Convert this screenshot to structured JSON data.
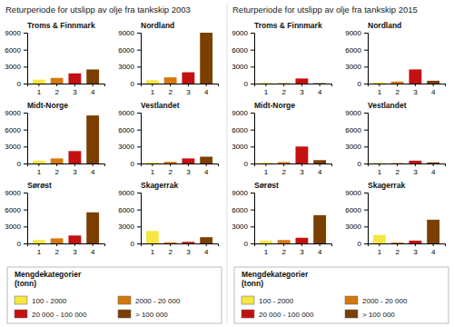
{
  "chart_data": [
    {
      "type": "bar",
      "title": "Returperiode for utslipp av olje fra tankskip 2003",
      "categories": [
        "1",
        "2",
        "3",
        "4"
      ],
      "colors": [
        "#F5E642",
        "#D4780A",
        "#C41010",
        "#7B3F00"
      ],
      "ylim": [
        0,
        9000
      ],
      "yticks": [
        0,
        3000,
        6000,
        9000
      ],
      "grid": false,
      "legend": "lower right",
      "legend_title": "Mengdekategorier\n(tonn)",
      "legend_labels": [
        "100 - 2000",
        "2000 - 20 000",
        "20 000 - 100 000",
        "> 100 000"
      ],
      "facets": [
        {
          "title": "Troms & Finnmark",
          "values": [
            700,
            1000,
            1800,
            2500
          ]
        },
        {
          "title": "Nordland",
          "values": [
            600,
            1100,
            2000,
            9000
          ]
        },
        {
          "title": "Midt-Norge",
          "values": [
            500,
            900,
            2200,
            8500
          ]
        },
        {
          "title": "Vestlandet",
          "values": [
            150,
            300,
            900,
            1200
          ]
        },
        {
          "title": "Sørøst",
          "values": [
            600,
            900,
            1400,
            5500
          ]
        },
        {
          "title": "Skagerrak",
          "values": [
            2200,
            200,
            280,
            1100
          ]
        }
      ]
    },
    {
      "type": "bar",
      "title": "Returperiode for utslipp av olje fra tankskip 2015",
      "categories": [
        "1",
        "2",
        "3",
        "4"
      ],
      "colors": [
        "#F5E642",
        "#D4780A",
        "#C41010",
        "#7B3F00"
      ],
      "ylim": [
        0,
        9000
      ],
      "yticks": [
        0,
        3000,
        6000,
        9000
      ],
      "grid": false,
      "legend": "lower right",
      "legend_title": "Mengdekategorier\n(tonn)",
      "legend_labels": [
        "100 - 2000",
        "2000 - 20 000",
        "20 000 - 100 000",
        "> 100 000"
      ],
      "facets": [
        {
          "title": "Troms & Finnmark",
          "values": [
            120,
            80,
            900,
            80
          ]
        },
        {
          "title": "Nordland",
          "values": [
            200,
            350,
            2500,
            500
          ]
        },
        {
          "title": "Midt-Norge",
          "values": [
            150,
            250,
            3000,
            600
          ]
        },
        {
          "title": "Vestlandet",
          "values": [
            80,
            80,
            500,
            200
          ]
        },
        {
          "title": "Sørøst",
          "values": [
            500,
            600,
            1000,
            5000
          ]
        },
        {
          "title": "Skagerrak",
          "values": [
            1500,
            180,
            500,
            4200
          ]
        }
      ]
    }
  ]
}
